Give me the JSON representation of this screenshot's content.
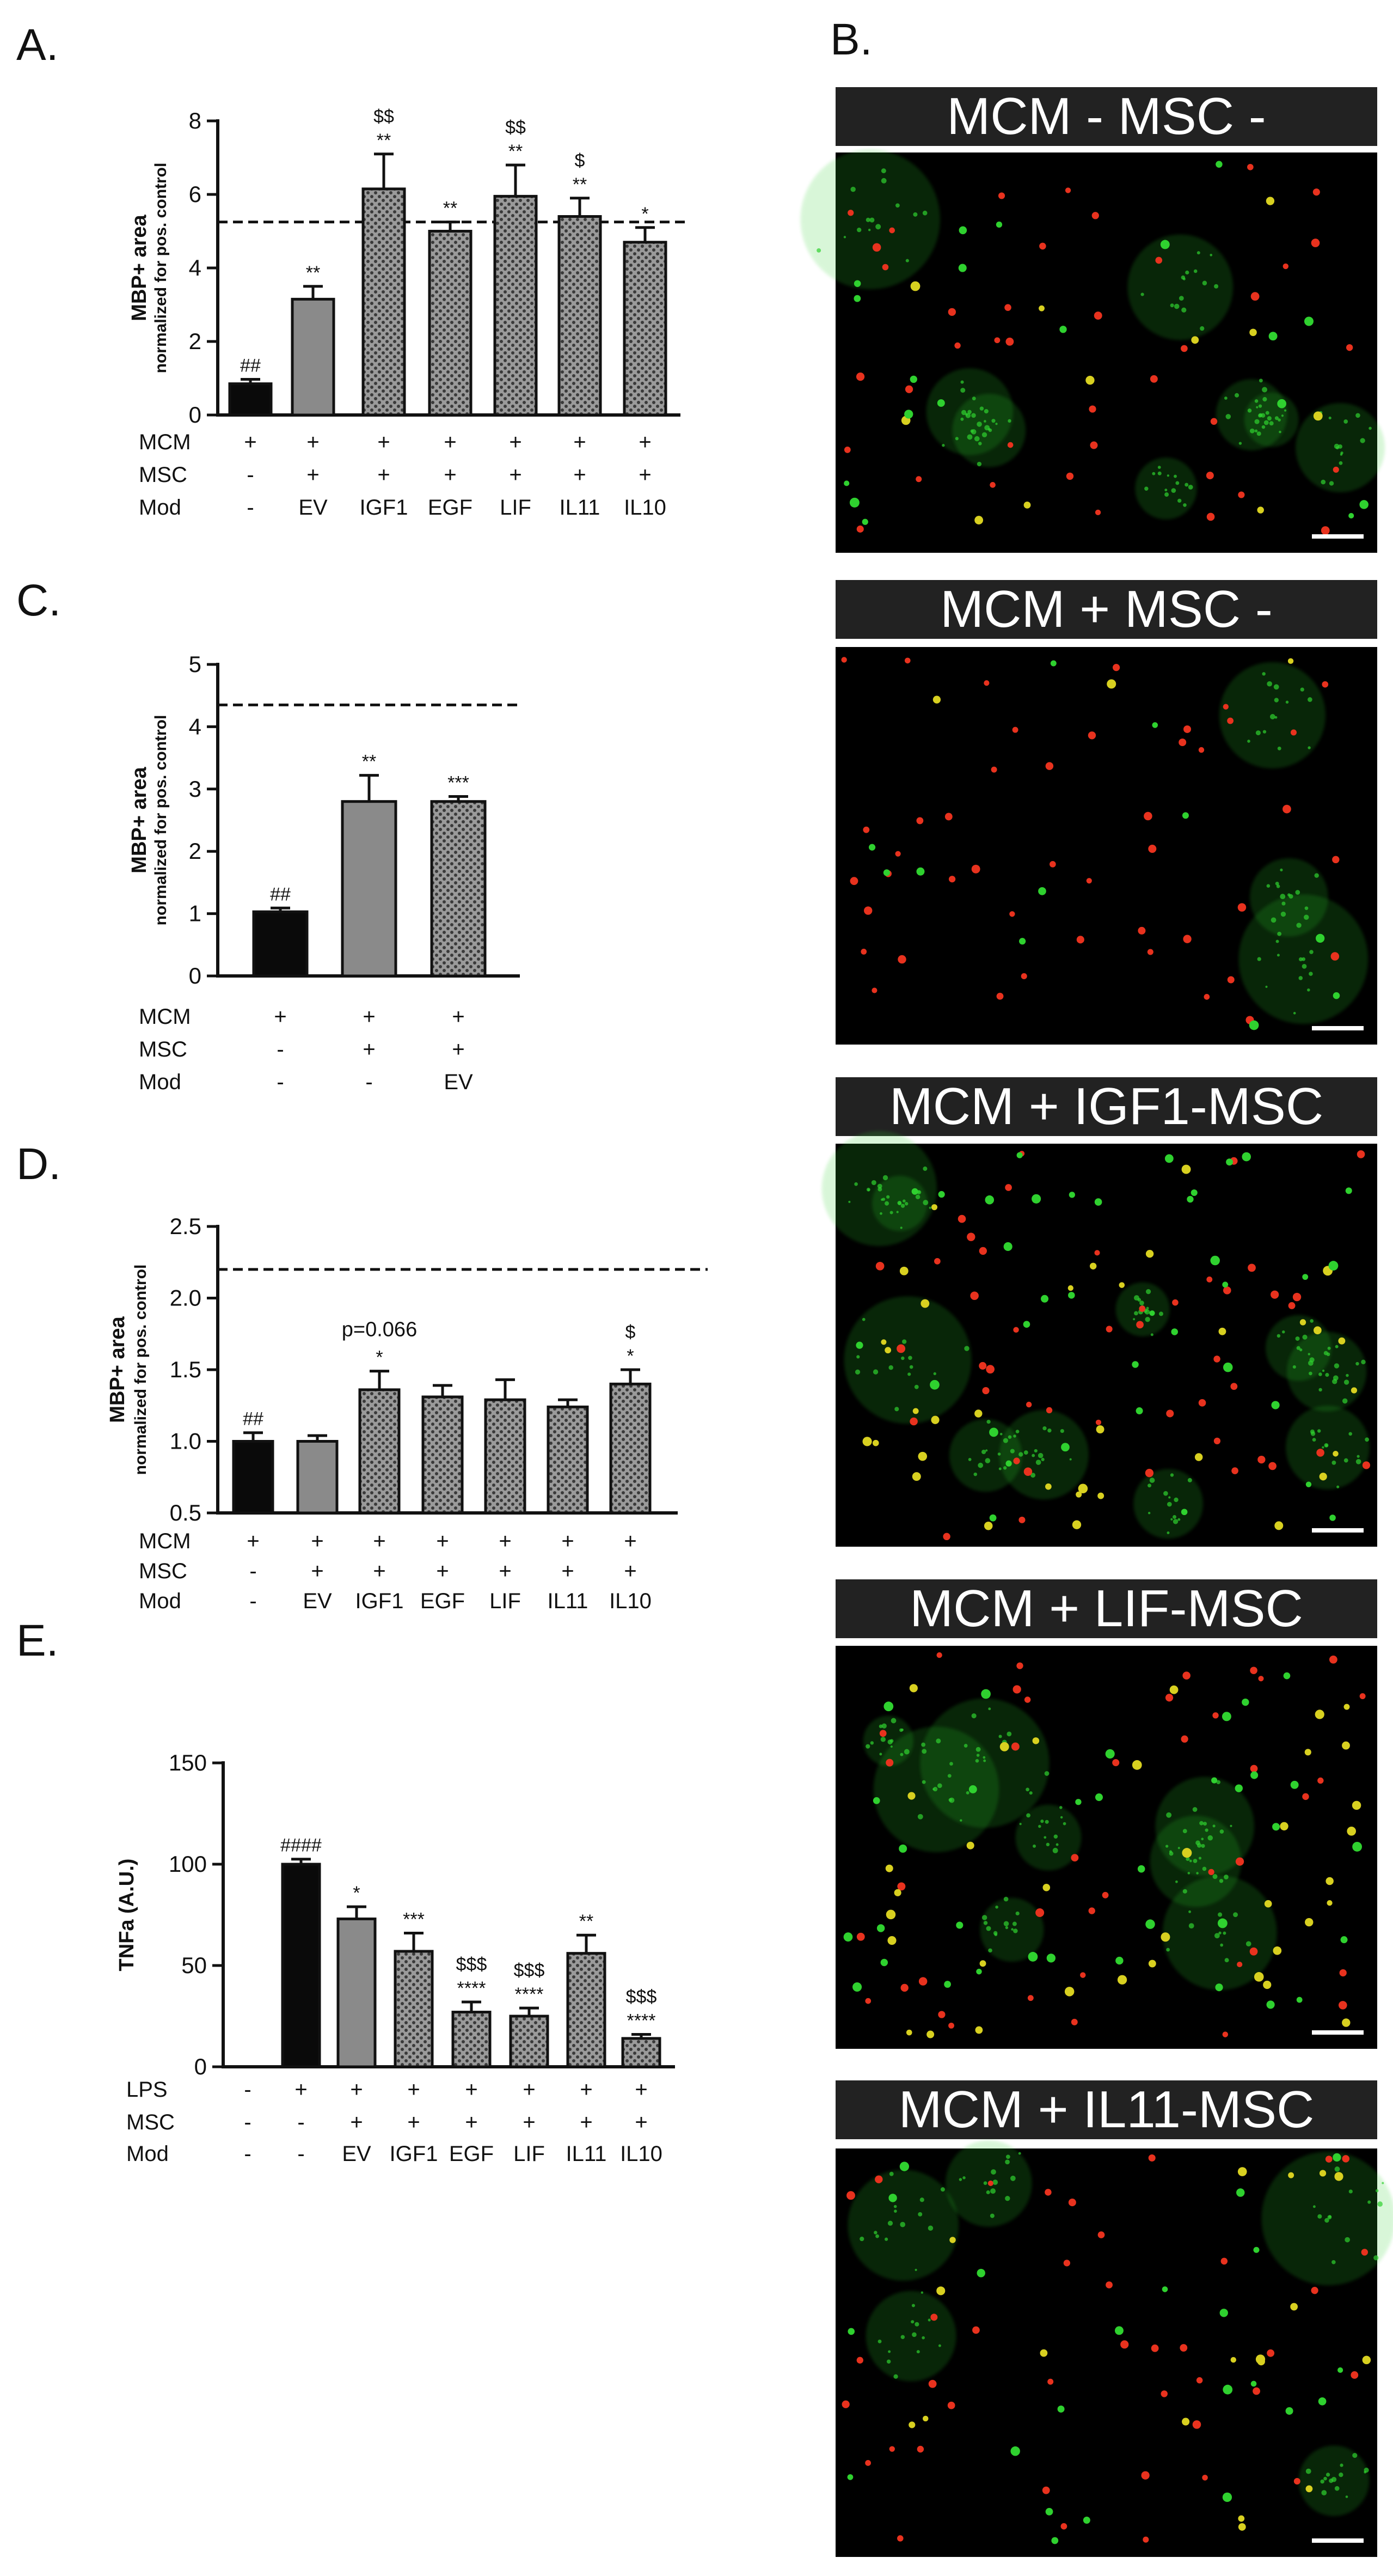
{
  "panel_letters": [
    "A.",
    "B.",
    "C.",
    "D.",
    "E."
  ],
  "chart_data": [
    {
      "panel": "A.",
      "type": "bar",
      "ylabel": "MBP+ area",
      "ylabel_sub": "normalized for pos. control",
      "ylim": [
        0,
        8
      ],
      "yticks": [
        "0",
        "2",
        "4",
        "6",
        "8"
      ],
      "reference_line": 5.25,
      "condition_rows": [
        {
          "label": "MCM",
          "values": [
            "+",
            "+",
            "+",
            "+",
            "+",
            "+",
            "+"
          ]
        },
        {
          "label": "MSC",
          "values": [
            "-",
            "+",
            "+",
            "+",
            "+",
            "+",
            "+"
          ]
        },
        {
          "label": "Mod",
          "values": [
            "-",
            "EV",
            "IGF1",
            "EGF",
            "LIF",
            "IL11",
            "IL10"
          ]
        }
      ],
      "bars": [
        {
          "value": 0.85,
          "error": 0.12,
          "fill": "black",
          "sig": [
            "##"
          ]
        },
        {
          "value": 3.15,
          "error": 0.35,
          "fill": "grey",
          "sig": [
            "**"
          ]
        },
        {
          "value": 6.15,
          "error": 0.95,
          "fill": "dotted",
          "sig": [
            "$$",
            "**"
          ]
        },
        {
          "value": 5.0,
          "error": 0.25,
          "fill": "dotted",
          "sig": [
            "**"
          ]
        },
        {
          "value": 5.95,
          "error": 0.85,
          "fill": "dotted",
          "sig": [
            "$$",
            "**"
          ]
        },
        {
          "value": 5.4,
          "error": 0.5,
          "fill": "dotted",
          "sig": [
            "$",
            "**"
          ]
        },
        {
          "value": 4.7,
          "error": 0.4,
          "fill": "dotted",
          "sig": [
            "*"
          ]
        }
      ]
    },
    {
      "panel": "C.",
      "type": "bar",
      "ylabel": "MBP+ area",
      "ylabel_sub": "normalized for pos. control",
      "ylim": [
        0,
        5
      ],
      "yticks": [
        "0",
        "1",
        "2",
        "3",
        "4",
        "5"
      ],
      "reference_line": 4.35,
      "condition_rows": [
        {
          "label": "MCM",
          "values": [
            "+",
            "+",
            "+"
          ]
        },
        {
          "label": "MSC",
          "values": [
            "-",
            "+",
            "+"
          ]
        },
        {
          "label": "Mod",
          "values": [
            "-",
            "-",
            "EV"
          ]
        }
      ],
      "bars": [
        {
          "value": 1.03,
          "error": 0.06,
          "fill": "black",
          "sig": [
            "##"
          ]
        },
        {
          "value": 2.8,
          "error": 0.42,
          "fill": "grey",
          "sig": [
            "**"
          ]
        },
        {
          "value": 2.8,
          "error": 0.08,
          "fill": "dotted",
          "sig": [
            "***"
          ]
        }
      ]
    },
    {
      "panel": "D.",
      "type": "bar",
      "ylabel": "MBP+ area",
      "ylabel_sub": "normalized for pos. control",
      "ylim": [
        0.5,
        2.5
      ],
      "yticks": [
        "0.5",
        "1.0",
        "1.5",
        "2.0",
        "2.5"
      ],
      "reference_line": 2.2,
      "annotation": "p=0.066",
      "condition_rows": [
        {
          "label": "MCM",
          "values": [
            "+",
            "+",
            "+",
            "+",
            "+",
            "+",
            "+"
          ]
        },
        {
          "label": "MSC",
          "values": [
            "-",
            "+",
            "+",
            "+",
            "+",
            "+",
            "+"
          ]
        },
        {
          "label": "Mod",
          "values": [
            "-",
            "EV",
            "IGF1",
            "EGF",
            "LIF",
            "IL11",
            "IL10"
          ]
        }
      ],
      "bars": [
        {
          "value": 1.0,
          "error": 0.06,
          "fill": "black",
          "sig": [
            "##"
          ]
        },
        {
          "value": 1.0,
          "error": 0.04,
          "fill": "grey",
          "sig": []
        },
        {
          "value": 1.36,
          "error": 0.13,
          "fill": "dotted",
          "sig": [
            "*"
          ]
        },
        {
          "value": 1.31,
          "error": 0.08,
          "fill": "dotted",
          "sig": []
        },
        {
          "value": 1.29,
          "error": 0.14,
          "fill": "dotted",
          "sig": []
        },
        {
          "value": 1.24,
          "error": 0.05,
          "fill": "dotted",
          "sig": []
        },
        {
          "value": 1.4,
          "error": 0.1,
          "fill": "dotted",
          "sig": [
            "$",
            "*"
          ]
        }
      ]
    },
    {
      "panel": "E.",
      "type": "bar",
      "ylabel": "TNFa (A.U.)",
      "ylim": [
        0,
        150
      ],
      "yticks": [
        "0",
        "50",
        "100",
        "150"
      ],
      "condition_rows": [
        {
          "label": "LPS",
          "values": [
            "-",
            "+",
            "+",
            "+",
            "+",
            "+",
            "+",
            "+"
          ]
        },
        {
          "label": "MSC",
          "values": [
            "-",
            "-",
            "+",
            "+",
            "+",
            "+",
            "+",
            "+"
          ]
        },
        {
          "label": "Mod",
          "values": [
            "-",
            "-",
            "EV",
            "IGF1",
            "EGF",
            "LIF",
            "IL11",
            "IL10"
          ]
        }
      ],
      "bars": [
        {
          "value": 0,
          "error": 0,
          "fill": "none",
          "sig": []
        },
        {
          "value": 100,
          "error": 2.5,
          "fill": "black",
          "sig": [
            "####"
          ]
        },
        {
          "value": 73,
          "error": 6,
          "fill": "grey",
          "sig": [
            "*"
          ]
        },
        {
          "value": 57,
          "error": 9,
          "fill": "dotted",
          "sig": [
            "***"
          ]
        },
        {
          "value": 27,
          "error": 5,
          "fill": "dotted",
          "sig": [
            "$$$",
            "****"
          ]
        },
        {
          "value": 25,
          "error": 4,
          "fill": "dotted",
          "sig": [
            "$$$",
            "****"
          ]
        },
        {
          "value": 56,
          "error": 9,
          "fill": "dotted",
          "sig": [
            "**"
          ]
        },
        {
          "value": 14,
          "error": 2,
          "fill": "dotted",
          "sig": [
            "$$$",
            "****"
          ]
        }
      ]
    }
  ],
  "images": [
    {
      "title": "MCM - MSC -"
    },
    {
      "title": "MCM + MSC -"
    },
    {
      "title": "MCM + IGF1-MSC"
    },
    {
      "title": "MCM + LIF-MSC"
    },
    {
      "title": "MCM + IL11-MSC"
    }
  ],
  "colors": {
    "bar_black": "#0a0a0a",
    "bar_grey": "#8a8a8a",
    "bar_dotted_bg": "#9a9a9a",
    "bar_dotted_dot": "#3a3a3a",
    "cell_green": "#2fd12f",
    "cell_red": "#e8321e",
    "cell_yellow": "#d8d020",
    "micro_bg": "#000000",
    "title_bg": "#222222"
  }
}
